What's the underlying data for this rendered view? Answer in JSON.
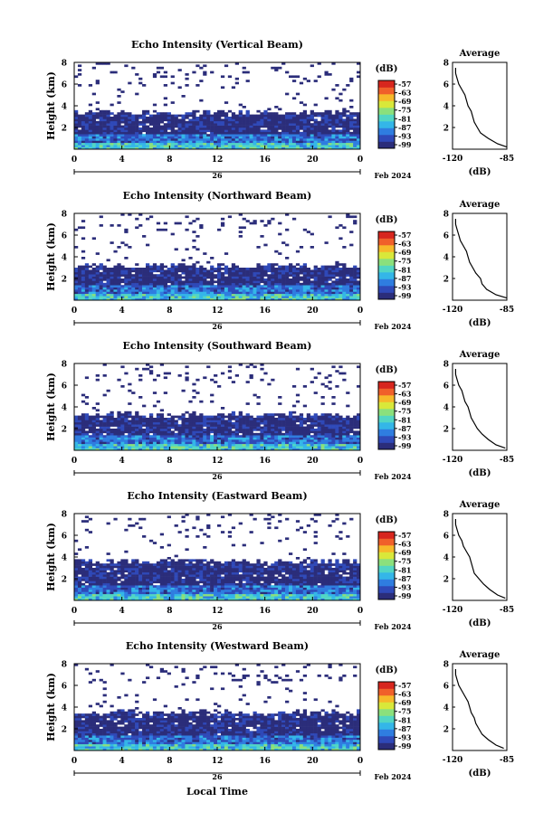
{
  "figure": {
    "xlabel": "Local Time",
    "date_label": "Feb 2024",
    "day_label": "26"
  },
  "colorbar": {
    "title": "(dB)",
    "ticks": [
      "-57",
      "-63",
      "-69",
      "-75",
      "-81",
      "-87",
      "-93",
      "-99"
    ],
    "range": [
      -99,
      -57
    ],
    "colors": [
      "#2b2d7a",
      "#2f49b8",
      "#2f7de0",
      "#34b6e8",
      "#52d6c4",
      "#8be07c",
      "#d9e83a",
      "#f7b92a",
      "#f0602a",
      "#d7261e"
    ]
  },
  "chart_data": [
    {
      "type": "heatmap",
      "title": "Echo Intensity (Vertical Beam)",
      "ylabel": "Height (km)",
      "xticks": [
        "0",
        "4",
        "8",
        "12",
        "16",
        "20",
        "0"
      ],
      "yticks": [
        "2",
        "4",
        "6",
        "8"
      ],
      "xlim": [
        0,
        24
      ],
      "ylim": [
        0,
        8
      ],
      "cloud_layer_top_km": 3.4,
      "average": {
        "title": "Average",
        "xlabel": "(dB)",
        "xticks": [
          "-120",
          "-85"
        ],
        "yticks": [
          "2",
          "4",
          "6",
          "8"
        ],
        "xlim": [
          -120,
          -85
        ],
        "ylim": [
          0,
          8
        ],
        "height_km": [
          0.2,
          0.5,
          1,
          1.5,
          2,
          2.5,
          3,
          3.5,
          4,
          4.5,
          5,
          5.5,
          6,
          6.5,
          7,
          7.5
        ],
        "value_db": [
          -85,
          -91,
          -97,
          -102,
          -104,
          -106,
          -107,
          -108,
          -110,
          -111,
          -112,
          -114,
          -116,
          -117,
          -118,
          -118
        ]
      }
    },
    {
      "type": "heatmap",
      "title": "Echo Intensity (Northward Beam)",
      "ylabel": "Height (km)",
      "xticks": [
        "0",
        "4",
        "8",
        "12",
        "16",
        "20",
        "0"
      ],
      "yticks": [
        "2",
        "4",
        "6",
        "8"
      ],
      "xlim": [
        0,
        24
      ],
      "ylim": [
        0,
        8
      ],
      "cloud_layer_top_km": 3.2,
      "average": {
        "title": "Average",
        "xlabel": "(dB)",
        "xticks": [
          "-120",
          "-85"
        ],
        "yticks": [
          "2",
          "4",
          "6",
          "8"
        ],
        "xlim": [
          -120,
          -85
        ],
        "ylim": [
          0,
          8
        ],
        "height_km": [
          0.2,
          0.5,
          1,
          1.5,
          2,
          2.5,
          3,
          3.5,
          4,
          4.5,
          5,
          5.5,
          6,
          6.5,
          7,
          7.5
        ],
        "value_db": [
          -85,
          -92,
          -98,
          -101,
          -102,
          -105,
          -107,
          -109,
          -110,
          -111,
          -113,
          -115,
          -116,
          -117,
          -118,
          -118
        ]
      }
    },
    {
      "type": "heatmap",
      "title": "Echo Intensity (Southward Beam)",
      "ylabel": "Height (km)",
      "xticks": [
        "0",
        "4",
        "8",
        "12",
        "16",
        "20",
        "0"
      ],
      "yticks": [
        "2",
        "4",
        "6",
        "8"
      ],
      "xlim": [
        0,
        24
      ],
      "ylim": [
        0,
        8
      ],
      "cloud_layer_top_km": 3.3,
      "average": {
        "title": "Average",
        "xlabel": "(dB)",
        "xticks": [
          "-120",
          "-85"
        ],
        "yticks": [
          "2",
          "4",
          "6",
          "8"
        ],
        "xlim": [
          -120,
          -85
        ],
        "ylim": [
          0,
          8
        ],
        "height_km": [
          0.2,
          0.5,
          1,
          1.5,
          2,
          2.5,
          3,
          3.5,
          4,
          4.5,
          5,
          5.5,
          6,
          6.5,
          7,
          7.5
        ],
        "value_db": [
          -86,
          -92,
          -97,
          -101,
          -104,
          -106,
          -108,
          -109,
          -110,
          -112,
          -113,
          -114,
          -116,
          -117,
          -118,
          -118
        ]
      }
    },
    {
      "type": "heatmap",
      "title": "Echo Intensity (Eastward Beam)",
      "ylabel": "Height (km)",
      "xticks": [
        "0",
        "4",
        "8",
        "12",
        "16",
        "20",
        "0"
      ],
      "yticks": [
        "2",
        "4",
        "6",
        "8"
      ],
      "xlim": [
        0,
        24
      ],
      "ylim": [
        0,
        8
      ],
      "cloud_layer_top_km": 3.6,
      "average": {
        "title": "Average",
        "xlabel": "(dB)",
        "xticks": [
          "-120",
          "-85"
        ],
        "yticks": [
          "2",
          "4",
          "6",
          "8"
        ],
        "xlim": [
          -120,
          -85
        ],
        "ylim": [
          0,
          8
        ],
        "height_km": [
          0.2,
          0.5,
          1,
          1.5,
          2,
          2.5,
          3,
          3.5,
          4,
          4.5,
          5,
          5.5,
          6,
          6.5,
          7,
          7.5
        ],
        "value_db": [
          -86,
          -91,
          -96,
          -100,
          -103,
          -106,
          -107,
          -108,
          -109,
          -111,
          -113,
          -114,
          -116,
          -117,
          -118,
          -118
        ]
      }
    },
    {
      "type": "heatmap",
      "title": "Echo Intensity (Westward Beam)",
      "ylabel": "Height (km)",
      "xticks": [
        "0",
        "4",
        "8",
        "12",
        "16",
        "20",
        "0"
      ],
      "yticks": [
        "2",
        "4",
        "6",
        "8"
      ],
      "xlim": [
        0,
        24
      ],
      "ylim": [
        0,
        8
      ],
      "cloud_layer_top_km": 3.5,
      "average": {
        "title": "Average",
        "xlabel": "(dB)",
        "xticks": [
          "-120",
          "-85"
        ],
        "yticks": [
          "2",
          "4",
          "6",
          "8"
        ],
        "xlim": [
          -120,
          -85
        ],
        "ylim": [
          0,
          8
        ],
        "height_km": [
          0.2,
          0.5,
          1,
          1.5,
          2,
          2.5,
          3,
          3.5,
          4,
          4.5,
          5,
          5.5,
          6,
          6.5,
          7,
          7.5
        ],
        "value_db": [
          -87,
          -92,
          -97,
          -101,
          -103,
          -105,
          -106,
          -108,
          -109,
          -110,
          -112,
          -114,
          -116,
          -117,
          -118,
          -118
        ]
      }
    }
  ]
}
